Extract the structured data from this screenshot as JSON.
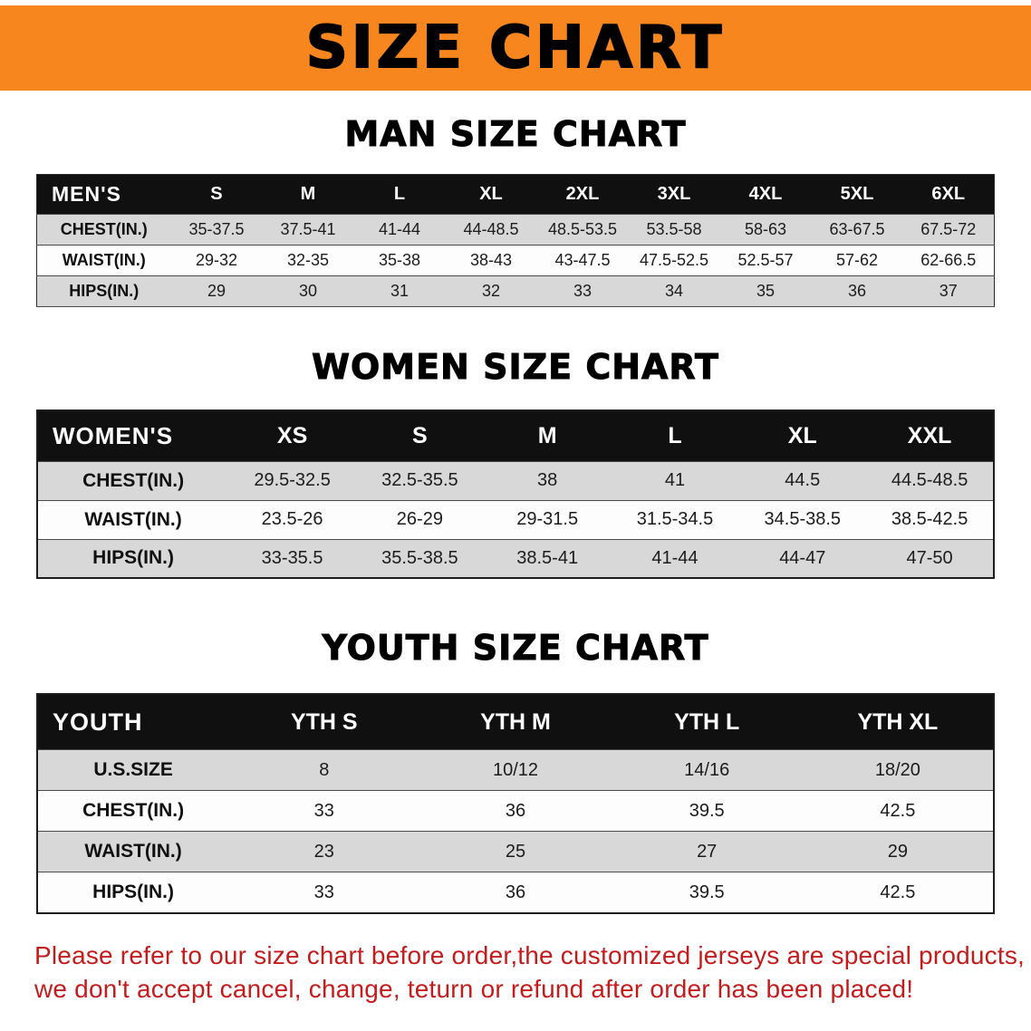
{
  "banner": {
    "title": "SIZE CHART",
    "bg_color": "#f6861d"
  },
  "sections": [
    {
      "id": "men",
      "heading": "MAN SIZE CHART",
      "table": {
        "header": [
          "MEN'S",
          "S",
          "M",
          "L",
          "XL",
          "2XL",
          "3XL",
          "4XL",
          "5XL",
          "6XL"
        ],
        "rows": [
          [
            "CHEST(IN.)",
            "35-37.5",
            "37.5-41",
            "41-44",
            "44-48.5",
            "48.5-53.5",
            "53.5-58",
            "58-63",
            "63-67.5",
            "67.5-72"
          ],
          [
            "WAIST(IN.)",
            "29-32",
            "32-35",
            "35-38",
            "38-43",
            "43-47.5",
            "47.5-52.5",
            "52.5-57",
            "57-62",
            "62-66.5"
          ],
          [
            "HIPS(IN.)",
            "29",
            "30",
            "31",
            "32",
            "33",
            "34",
            "35",
            "36",
            "37"
          ]
        ]
      }
    },
    {
      "id": "women",
      "heading": "WOMEN SIZE CHART",
      "table": {
        "header": [
          "WOMEN'S",
          "XS",
          "S",
          "M",
          "L",
          "XL",
          "XXL"
        ],
        "rows": [
          [
            "CHEST(IN.)",
            "29.5-32.5",
            "32.5-35.5",
            "38",
            "41",
            "44.5",
            "44.5-48.5"
          ],
          [
            "WAIST(IN.)",
            "23.5-26",
            "26-29",
            "29-31.5",
            "31.5-34.5",
            "34.5-38.5",
            "38.5-42.5"
          ],
          [
            "HIPS(IN.)",
            "33-35.5",
            "35.5-38.5",
            "38.5-41",
            "41-44",
            "44-47",
            "47-50"
          ]
        ]
      }
    },
    {
      "id": "youth",
      "heading": "YOUTH SIZE CHART",
      "table": {
        "header": [
          "YOUTH",
          "YTH S",
          "YTH M",
          "YTH L",
          "YTH XL"
        ],
        "rows": [
          [
            "U.S.SIZE",
            "8",
            "10/12",
            "14/16",
            "18/20"
          ],
          [
            "CHEST(IN.)",
            "33",
            "36",
            "39.5",
            "42.5"
          ],
          [
            "WAIST(IN.)",
            "23",
            "25",
            "27",
            "29"
          ],
          [
            "HIPS(IN.)",
            "33",
            "36",
            "39.5",
            "42.5"
          ]
        ]
      }
    }
  ],
  "footer": {
    "line1": "Please refer to our size chart before order,the customized jerseys are special products,",
    "line2": "we don't accept cancel, change, teturn or refund after order has been placed!"
  },
  "colors": {
    "banner_orange": "#f6861d",
    "table_header_black": "#101010",
    "row_gray": "#d8d8d8",
    "row_white": "#fdfdfd",
    "notice_red": "#c41c1c"
  }
}
